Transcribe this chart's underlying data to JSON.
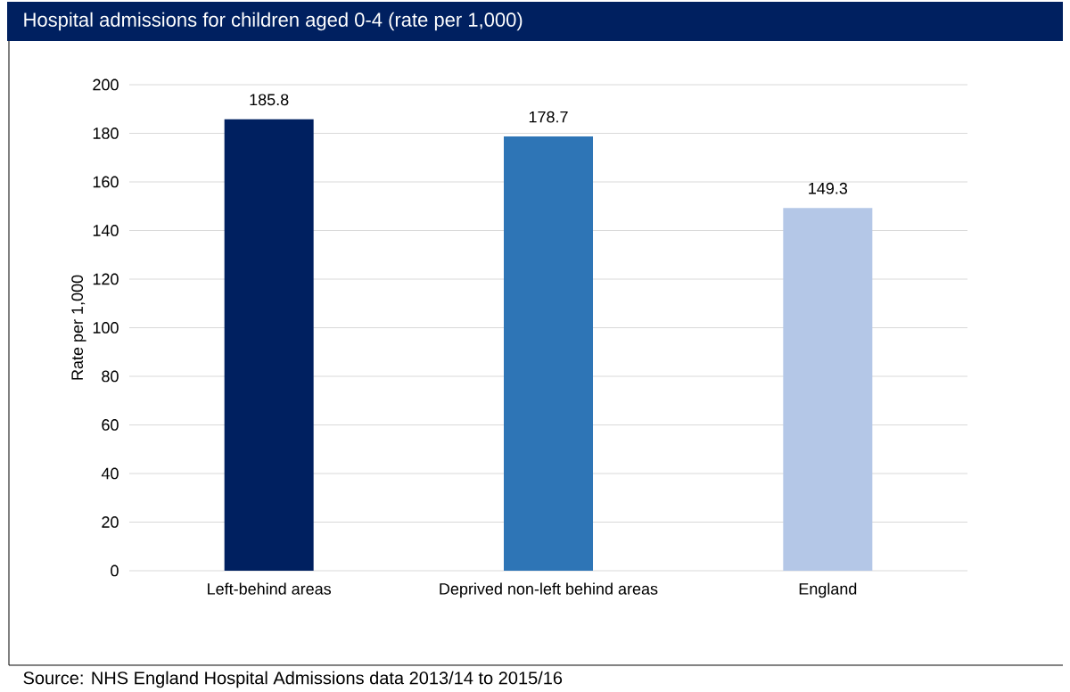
{
  "chart_data": {
    "type": "bar",
    "title": "Hospital admissions for children aged 0-4 (rate per 1,000)",
    "ylabel": "Rate per 1,000",
    "categories": [
      "Left-behind areas",
      "Deprived non-left behind areas",
      "England"
    ],
    "values": [
      185.8,
      178.7,
      149.3
    ],
    "colors": [
      "#002060",
      "#2e75b6",
      "#b4c7e7"
    ],
    "value_labels": [
      "185.8",
      "178.7",
      "149.3"
    ],
    "ylim": [
      0,
      200
    ],
    "yticks": [
      0,
      20,
      40,
      60,
      80,
      100,
      120,
      140,
      160,
      180,
      200
    ],
    "grid": "y",
    "annotations": [
      "Source: NHS England Hospital Admissions data 2013/14 to 2015/16"
    ]
  }
}
